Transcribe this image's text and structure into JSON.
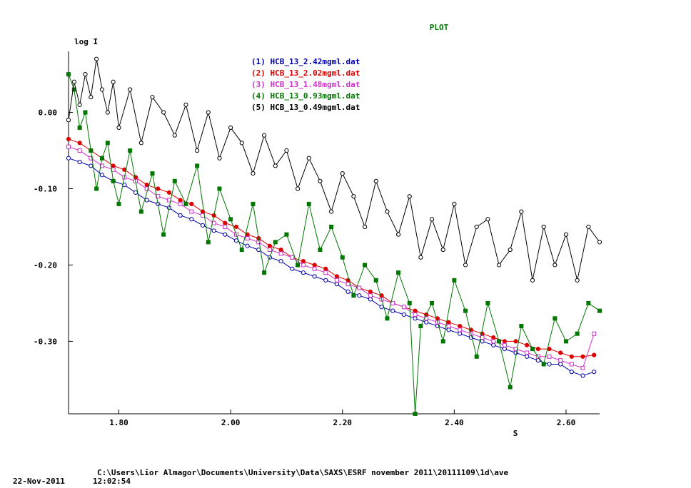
{
  "chart_data": {
    "type": "line",
    "title": "PLOT",
    "title_color": "#007700",
    "ylabel": "log I",
    "xlabel": "S",
    "xlim": [
      1.71,
      2.66
    ],
    "ylim": [
      -0.395,
      0.08
    ],
    "xticks": [
      {
        "value": 1.8,
        "label": "1.80"
      },
      {
        "value": 2.0,
        "label": "2.00"
      },
      {
        "value": 2.2,
        "label": "2.20"
      },
      {
        "value": 2.4,
        "label": "2.40"
      },
      {
        "value": 2.6,
        "label": "2.60"
      }
    ],
    "yticks": [
      {
        "value": 0.0,
        "label": "0.00"
      },
      {
        "value": -0.1,
        "label": "-0.10"
      },
      {
        "value": -0.2,
        "label": "-0.20"
      },
      {
        "value": -0.3,
        "label": "-0.30"
      }
    ],
    "grid": false,
    "legend_position": "top-center",
    "series": [
      {
        "name": "(1) HCB_13_2.42mgml.dat",
        "color": "#0000aa",
        "marker": "open-circle",
        "x": [
          1.71,
          1.73,
          1.75,
          1.77,
          1.79,
          1.81,
          1.83,
          1.85,
          1.87,
          1.89,
          1.91,
          1.93,
          1.95,
          1.97,
          1.99,
          2.01,
          2.03,
          2.05,
          2.07,
          2.09,
          2.11,
          2.13,
          2.15,
          2.17,
          2.19,
          2.21,
          2.23,
          2.25,
          2.27,
          2.29,
          2.31,
          2.33,
          2.35,
          2.37,
          2.39,
          2.41,
          2.43,
          2.45,
          2.47,
          2.49,
          2.51,
          2.53,
          2.55,
          2.57,
          2.59,
          2.61,
          2.63,
          2.65
        ],
        "y": [
          -0.06,
          -0.065,
          -0.07,
          -0.082,
          -0.09,
          -0.095,
          -0.105,
          -0.115,
          -0.12,
          -0.125,
          -0.135,
          -0.14,
          -0.148,
          -0.155,
          -0.16,
          -0.168,
          -0.175,
          -0.18,
          -0.19,
          -0.195,
          -0.205,
          -0.21,
          -0.215,
          -0.22,
          -0.225,
          -0.235,
          -0.24,
          -0.245,
          -0.255,
          -0.26,
          -0.265,
          -0.27,
          -0.275,
          -0.28,
          -0.285,
          -0.29,
          -0.295,
          -0.3,
          -0.305,
          -0.31,
          -0.315,
          -0.32,
          -0.325,
          -0.33,
          -0.33,
          -0.34,
          -0.345,
          -0.34
        ]
      },
      {
        "name": "(2) HCB_13_2.02mgml.dat",
        "color": "#dd0000",
        "marker": "filled-circle",
        "x": [
          1.71,
          1.73,
          1.75,
          1.77,
          1.79,
          1.81,
          1.83,
          1.85,
          1.87,
          1.89,
          1.91,
          1.93,
          1.95,
          1.97,
          1.99,
          2.01,
          2.03,
          2.05,
          2.07,
          2.09,
          2.11,
          2.13,
          2.15,
          2.17,
          2.19,
          2.21,
          2.23,
          2.25,
          2.27,
          2.29,
          2.31,
          2.33,
          2.35,
          2.37,
          2.39,
          2.41,
          2.43,
          2.45,
          2.47,
          2.49,
          2.51,
          2.53,
          2.55,
          2.57,
          2.59,
          2.61,
          2.63,
          2.65
        ],
        "y": [
          -0.035,
          -0.04,
          -0.05,
          -0.06,
          -0.07,
          -0.075,
          -0.085,
          -0.095,
          -0.1,
          -0.105,
          -0.115,
          -0.12,
          -0.13,
          -0.135,
          -0.145,
          -0.15,
          -0.16,
          -0.165,
          -0.175,
          -0.18,
          -0.19,
          -0.195,
          -0.2,
          -0.205,
          -0.215,
          -0.22,
          -0.23,
          -0.235,
          -0.24,
          -0.25,
          -0.255,
          -0.26,
          -0.265,
          -0.27,
          -0.275,
          -0.28,
          -0.285,
          -0.29,
          -0.295,
          -0.3,
          -0.3,
          -0.305,
          -0.31,
          -0.31,
          -0.315,
          -0.32,
          -0.32,
          -0.318
        ]
      },
      {
        "name": "(3) HCB_13_1.48mgml.dat",
        "color": "#cc33cc",
        "marker": "open-square",
        "x": [
          1.71,
          1.73,
          1.75,
          1.77,
          1.79,
          1.81,
          1.83,
          1.85,
          1.87,
          1.89,
          1.91,
          1.93,
          1.95,
          1.97,
          1.99,
          2.01,
          2.03,
          2.05,
          2.07,
          2.09,
          2.11,
          2.13,
          2.15,
          2.17,
          2.19,
          2.21,
          2.23,
          2.25,
          2.27,
          2.29,
          2.31,
          2.33,
          2.35,
          2.37,
          2.39,
          2.41,
          2.43,
          2.45,
          2.47,
          2.49,
          2.51,
          2.53,
          2.55,
          2.57,
          2.59,
          2.61,
          2.63,
          2.65
        ],
        "y": [
          -0.045,
          -0.05,
          -0.06,
          -0.07,
          -0.075,
          -0.085,
          -0.09,
          -0.1,
          -0.11,
          -0.115,
          -0.12,
          -0.13,
          -0.135,
          -0.145,
          -0.15,
          -0.16,
          -0.165,
          -0.17,
          -0.18,
          -0.185,
          -0.19,
          -0.2,
          -0.205,
          -0.21,
          -0.22,
          -0.225,
          -0.23,
          -0.24,
          -0.245,
          -0.25,
          -0.255,
          -0.265,
          -0.27,
          -0.275,
          -0.28,
          -0.285,
          -0.29,
          -0.295,
          -0.3,
          -0.305,
          -0.31,
          -0.315,
          -0.32,
          -0.32,
          -0.325,
          -0.33,
          -0.335,
          -0.29
        ]
      },
      {
        "name": "(4) HCB_13_0.93mgml.dat",
        "color": "#007700",
        "marker": "filled-square",
        "x": [
          1.71,
          1.72,
          1.73,
          1.74,
          1.75,
          1.76,
          1.77,
          1.78,
          1.79,
          1.8,
          1.82,
          1.84,
          1.86,
          1.88,
          1.9,
          1.92,
          1.94,
          1.96,
          1.98,
          2.0,
          2.02,
          2.04,
          2.06,
          2.08,
          2.1,
          2.12,
          2.14,
          2.16,
          2.18,
          2.2,
          2.22,
          2.24,
          2.26,
          2.28,
          2.3,
          2.32,
          2.33,
          2.34,
          2.36,
          2.38,
          2.4,
          2.42,
          2.44,
          2.46,
          2.48,
          2.5,
          2.52,
          2.54,
          2.56,
          2.58,
          2.6,
          2.62,
          2.64,
          2.66
        ],
        "y": [
          0.05,
          0.03,
          -0.02,
          0.0,
          -0.05,
          -0.1,
          -0.06,
          -0.04,
          -0.09,
          -0.12,
          -0.05,
          -0.13,
          -0.08,
          -0.16,
          -0.09,
          -0.12,
          -0.07,
          -0.17,
          -0.1,
          -0.14,
          -0.18,
          -0.12,
          -0.21,
          -0.17,
          -0.16,
          -0.2,
          -0.12,
          -0.18,
          -0.15,
          -0.19,
          -0.24,
          -0.2,
          -0.22,
          -0.27,
          -0.21,
          -0.25,
          -0.395,
          -0.28,
          -0.25,
          -0.3,
          -0.22,
          -0.26,
          -0.32,
          -0.25,
          -0.3,
          -0.36,
          -0.28,
          -0.31,
          -0.33,
          -0.27,
          -0.3,
          -0.29,
          -0.25,
          -0.26
        ]
      },
      {
        "name": "(5) HCB_13_0.49mgml.dat",
        "color": "#000000",
        "marker": "open-circle",
        "x": [
          1.71,
          1.72,
          1.73,
          1.74,
          1.75,
          1.76,
          1.77,
          1.78,
          1.79,
          1.8,
          1.82,
          1.84,
          1.86,
          1.88,
          1.9,
          1.92,
          1.94,
          1.96,
          1.98,
          2.0,
          2.02,
          2.04,
          2.06,
          2.08,
          2.1,
          2.12,
          2.14,
          2.16,
          2.18,
          2.2,
          2.22,
          2.24,
          2.26,
          2.28,
          2.3,
          2.32,
          2.34,
          2.36,
          2.38,
          2.4,
          2.42,
          2.44,
          2.46,
          2.48,
          2.5,
          2.52,
          2.54,
          2.56,
          2.58,
          2.6,
          2.62,
          2.64,
          2.66
        ],
        "y": [
          -0.01,
          0.04,
          0.01,
          0.05,
          0.02,
          0.07,
          0.03,
          0.0,
          0.04,
          -0.02,
          0.03,
          -0.04,
          0.02,
          0.0,
          -0.03,
          0.01,
          -0.05,
          0.0,
          -0.06,
          -0.02,
          -0.04,
          -0.08,
          -0.03,
          -0.07,
          -0.05,
          -0.1,
          -0.06,
          -0.09,
          -0.13,
          -0.08,
          -0.11,
          -0.15,
          -0.09,
          -0.13,
          -0.16,
          -0.11,
          -0.19,
          -0.14,
          -0.18,
          -0.12,
          -0.2,
          -0.15,
          -0.14,
          -0.2,
          -0.18,
          -0.13,
          -0.22,
          -0.15,
          -0.2,
          -0.16,
          -0.22,
          -0.15,
          -0.17
        ]
      }
    ]
  },
  "footer": {
    "path": "C:\\Users\\Lior Almagor\\Documents\\University\\Data\\SAXS\\ESRF november 2011\\20111109\\1d\\ave",
    "date": "22-Nov-2011",
    "time": "12:02:54"
  }
}
